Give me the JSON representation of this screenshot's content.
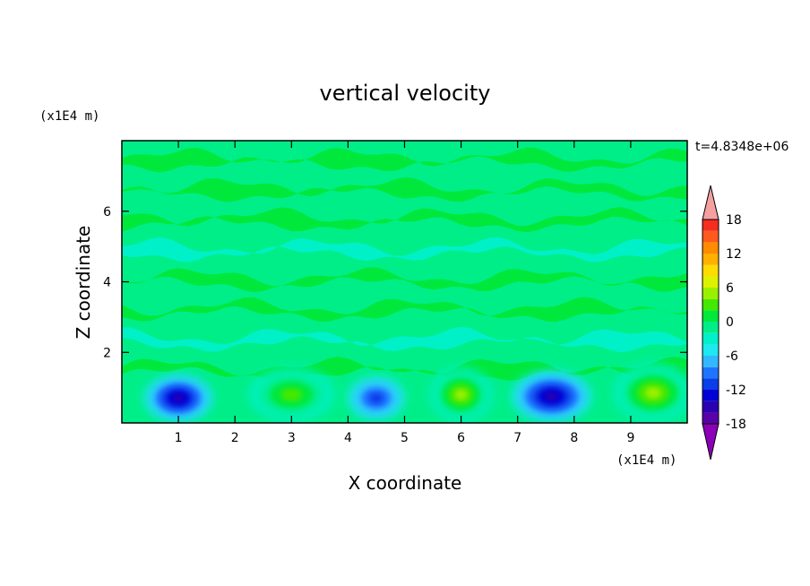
{
  "chart_data": {
    "type": "heatmap",
    "title": "vertical velocity",
    "xlabel": "X coordinate",
    "ylabel": "Z coordinate",
    "x_unit": "(x1E4 m)",
    "y_unit": "(x1E4 m)",
    "time_label": "t=4.8348e+06",
    "xlim": [
      0,
      10
    ],
    "ylim": [
      0,
      8
    ],
    "x_ticks": [
      1,
      2,
      3,
      4,
      5,
      6,
      7,
      8,
      9
    ],
    "y_ticks": [
      2,
      4,
      6
    ],
    "colorbar": {
      "min": -21,
      "max": 21,
      "step": 3,
      "labels": [
        18,
        12,
        6,
        0,
        -6,
        -12,
        -18
      ],
      "colors": [
        "#8c00b8",
        "#5a00a8",
        "#2a00b0",
        "#0000d6",
        "#0b3de8",
        "#1e74ff",
        "#33b8ff",
        "#1ee8f0",
        "#00f0c8",
        "#00ee88",
        "#00e83c",
        "#44e800",
        "#9bf000",
        "#dcf200",
        "#ffdc00",
        "#ffb000",
        "#ff8c00",
        "#ff5a1e",
        "#f52d1e",
        "#f5a0a0"
      ],
      "extend_low": "#8c00b8",
      "extend_high": "#f5a0a0"
    },
    "cells": [
      {
        "x": 1.0,
        "z": 0.7,
        "value": -14,
        "rx": 0.6,
        "rz": 0.65
      },
      {
        "x": 3.0,
        "z": 0.8,
        "value": 9,
        "rx": 0.75,
        "rz": 0.75
      },
      {
        "x": 4.5,
        "z": 0.7,
        "value": -10,
        "rx": 0.5,
        "rz": 0.6
      },
      {
        "x": 6.0,
        "z": 0.8,
        "value": 13,
        "rx": 0.55,
        "rz": 0.75
      },
      {
        "x": 7.6,
        "z": 0.75,
        "value": -16,
        "rx": 0.7,
        "rz": 0.7
      },
      {
        "x": 9.4,
        "z": 0.85,
        "value": 12,
        "rx": 0.7,
        "rz": 0.8
      }
    ]
  }
}
